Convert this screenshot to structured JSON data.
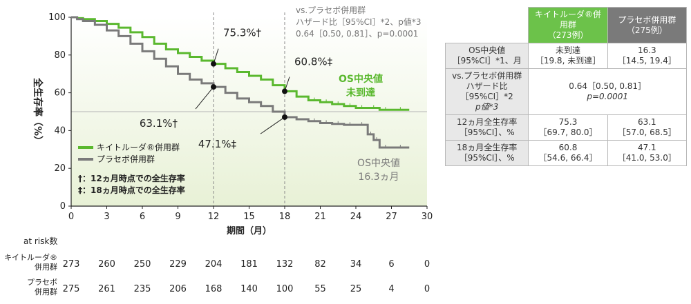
{
  "chart_data": {
    "type": "line",
    "xlabel": "期間（月）",
    "ylabel": "全生存率（%）",
    "xlim": [
      0,
      30
    ],
    "ylim": [
      0,
      100
    ],
    "xticks": [
      0,
      3,
      6,
      9,
      12,
      15,
      18,
      21,
      24,
      27,
      30
    ],
    "yticks": [
      0,
      20,
      40,
      60,
      80,
      100
    ],
    "colors": {
      "keytruda": "#5ab82e",
      "placebo": "#7a7a7a",
      "fill_top": "#ffffff",
      "fill_bottom": "#e8f1d6"
    },
    "series": [
      {
        "name": "キイトルーダ®併用群",
        "x": [
          0,
          0.5,
          1,
          2,
          3,
          4,
          5,
          6,
          7,
          8,
          9,
          10,
          11,
          12,
          13,
          14,
          15,
          16,
          17,
          18,
          19,
          20,
          21,
          22,
          23,
          24,
          25,
          26,
          27,
          28.5
        ],
        "y": [
          100,
          99.5,
          99,
          98,
          96.5,
          94.5,
          92,
          89.5,
          86,
          83,
          81,
          79,
          77,
          75.3,
          73,
          71,
          69,
          67,
          64,
          60.8,
          58,
          56,
          55,
          54,
          53,
          52,
          52,
          51,
          51,
          51
        ]
      },
      {
        "name": "プラセボ併用群",
        "x": [
          0,
          0.5,
          1,
          2,
          3,
          4,
          5,
          6,
          7,
          8,
          9,
          10,
          11,
          12,
          13,
          14,
          15,
          16,
          17,
          18,
          19,
          20,
          21,
          22,
          23,
          24,
          25,
          25.5,
          26,
          27,
          28.5
        ],
        "y": [
          100,
          99,
          98,
          96,
          93,
          90,
          86,
          82,
          78,
          74,
          70,
          67,
          65,
          63.1,
          60,
          57,
          55,
          53,
          50,
          47.1,
          46,
          45,
          44,
          43.5,
          43,
          43,
          38,
          35,
          31,
          31,
          31
        ]
      }
    ],
    "annotations": [
      {
        "x": 12,
        "y": 75.3,
        "label": "75.3%†",
        "series": "キイトルーダ®併用群"
      },
      {
        "x": 12,
        "y": 63.1,
        "label": "63.1%†",
        "series": "プラセボ併用群"
      },
      {
        "x": 18,
        "y": 60.8,
        "label": "60.8%‡",
        "series": "キイトルーダ®併用群"
      },
      {
        "x": 18,
        "y": 47.1,
        "label": "47.1%‡",
        "series": "プラセボ併用群"
      }
    ],
    "median_labels": {
      "keytruda": [
        "OS中央値",
        "未到達"
      ],
      "placebo": [
        "OS中央値",
        "16.3ヵ月"
      ]
    },
    "hazard_text": [
      "vs.プラセボ併用群",
      "ハザード比［95%CI］*2、p値*3",
      "0.64［0.50, 0.81］、p=0.0001"
    ],
    "footnotes": [
      "†：12ヵ月時点での全生存率",
      "‡：18ヵ月時点での全生存率"
    ],
    "at_risk": {
      "title": "at risk数",
      "x": [
        0,
        3,
        6,
        9,
        12,
        15,
        18,
        21,
        24,
        27,
        30
      ],
      "rows": [
        {
          "label": [
            "キイトルーダ®",
            "併用群"
          ],
          "values": [
            273,
            260,
            250,
            229,
            204,
            181,
            132,
            82,
            34,
            6,
            0
          ]
        },
        {
          "label": [
            "プラセボ",
            "併用群"
          ],
          "values": [
            275,
            261,
            235,
            206,
            168,
            140,
            100,
            55,
            25,
            4,
            0
          ]
        }
      ]
    }
  },
  "table": {
    "header_keytruda": [
      "キイトルーダ®併用群",
      "（273例）"
    ],
    "header_placebo": [
      "プラセボ併用群",
      "（275例）"
    ],
    "rows": [
      {
        "label": [
          "OS中央値",
          "［95%CI］*1、月"
        ],
        "keytruda": [
          "未到達",
          "［19.8, 未到達］"
        ],
        "placebo": [
          "16.3",
          "［14.5, 19.4］"
        ]
      },
      {
        "label": [
          "vs.プラセボ併用群",
          "ハザード比［95%CI］*2",
          "p値*3"
        ],
        "merged": [
          "0.64［0.50, 0.81］",
          "p=0.0001"
        ]
      },
      {
        "label": [
          "12ヵ月全生存率",
          "［95%CI］、%"
        ],
        "keytruda": [
          "75.3",
          "［69.7, 80.0］"
        ],
        "placebo": [
          "63.1",
          "［57.0, 68.5］"
        ]
      },
      {
        "label": [
          "18ヵ月全生存率",
          "［95%CI］、%"
        ],
        "keytruda": [
          "60.8",
          "［54.6, 66.4］"
        ],
        "placebo": [
          "47.1",
          "［41.0, 53.0］"
        ]
      }
    ]
  }
}
